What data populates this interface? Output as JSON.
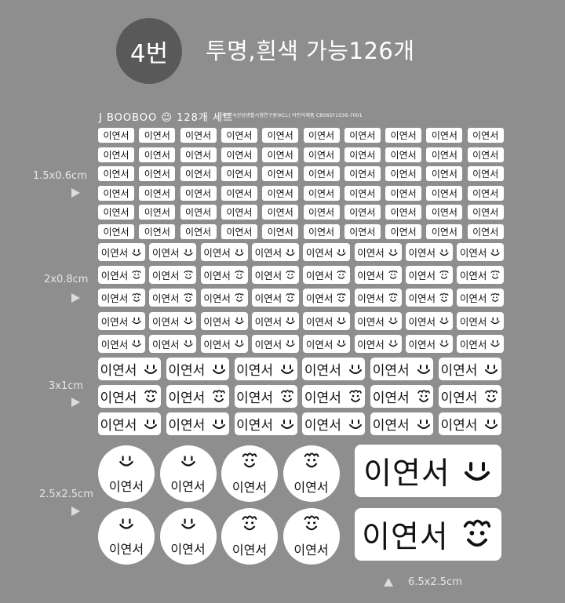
{
  "header": {
    "badge": "4번",
    "headline": "투명,흰색 가능126개"
  },
  "sheet": {
    "brand": "J BOOBOO ☺ 128개 세트",
    "cert": "Ⓚ 한국산업생활시험연구원(KCL)  어린이제품  CB065F1036-7001"
  },
  "sticker_name": "이연서",
  "sizes": {
    "small": "1.5x0.6cm",
    "medium": "2x0.8cm",
    "large": "3x1cm",
    "round": "2.5x2.5cm",
    "xl": "6.5x2.5cm"
  },
  "icons": {
    "smile": "smile-icon",
    "curly": "curly-hair-face-icon"
  }
}
